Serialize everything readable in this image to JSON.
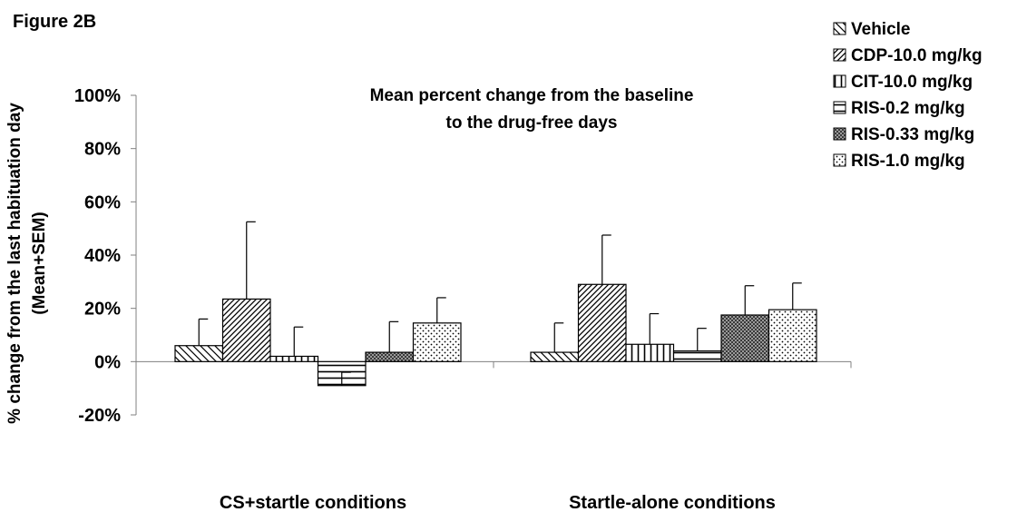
{
  "figure_label": "Figure 2B",
  "chart_data": {
    "type": "bar",
    "title": "Mean percent change from the baseline\nto the drug-free days",
    "ylabel": "% change from the last habituation day\n(Mean+SEM)",
    "xlabel": "",
    "ylim": [
      -0.2,
      1.0
    ],
    "yticks": [
      1.0,
      0.8,
      0.6,
      0.4,
      0.2,
      0.0,
      -0.2
    ],
    "ytick_labels": [
      "100%",
      "80%",
      "60%",
      "40%",
      "20%",
      "0%",
      "-20%"
    ],
    "grid": false,
    "legend_position": "top-right",
    "categories": [
      "CS+startle conditions",
      "Startle-alone conditions"
    ],
    "series": [
      {
        "name": "Vehicle",
        "pattern": "back-diag",
        "values": [
          0.06,
          0.035
        ],
        "err": [
          0.1,
          0.11
        ]
      },
      {
        "name": "CDP-10.0 mg/kg",
        "pattern": "fwd-diag-dense",
        "values": [
          0.235,
          0.29
        ],
        "err": [
          0.29,
          0.185
        ]
      },
      {
        "name": "CIT-10.0 mg/kg",
        "pattern": "vertical",
        "values": [
          0.02,
          0.065
        ],
        "err": [
          0.11,
          0.115
        ]
      },
      {
        "name": "RIS-0.2 mg/kg",
        "pattern": "horizontal",
        "values": [
          -0.09,
          0.04
        ],
        "err": [
          0.05,
          0.085
        ]
      },
      {
        "name": "RIS-0.33 mg/kg",
        "pattern": "dark-grid",
        "values": [
          0.035,
          0.175
        ],
        "err": [
          0.115,
          0.11
        ]
      },
      {
        "name": "RIS-1.0 mg/kg",
        "pattern": "dots",
        "values": [
          0.145,
          0.195
        ],
        "err": [
          0.095,
          0.1
        ]
      }
    ]
  }
}
